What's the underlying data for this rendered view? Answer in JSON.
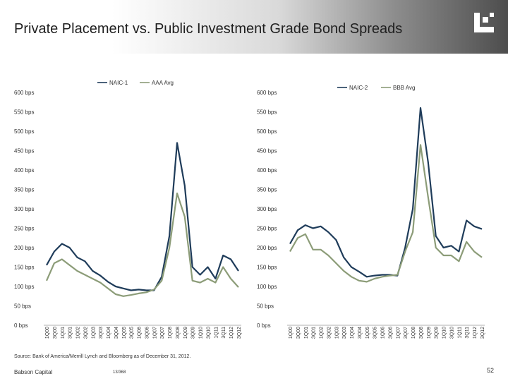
{
  "header": {
    "title": "Private Placement vs. Public Investment Grade Bond Spreads",
    "logo_icon": "babson-logo-icon"
  },
  "chart_data": [
    {
      "type": "line",
      "title": "",
      "xlabel": "",
      "ylabel": "",
      "ylim": [
        0,
        600
      ],
      "y_ticks": [
        0,
        50,
        100,
        150,
        200,
        250,
        300,
        350,
        400,
        450,
        500,
        550,
        600
      ],
      "y_tick_labels": [
        "0 bps",
        "50 bps",
        "100 bps",
        "150 bps",
        "200 bps",
        "250 bps",
        "300 bps",
        "350 bps",
        "400 bps",
        "450 bps",
        "500 bps",
        "550 bps",
        "600 bps"
      ],
      "categories": [
        "1Q00",
        "3Q00",
        "1Q01",
        "3Q01",
        "1Q02",
        "3Q02",
        "1Q03",
        "3Q03",
        "1Q04",
        "3Q04",
        "1Q05",
        "3Q05",
        "1Q06",
        "3Q06",
        "1Q07",
        "3Q07",
        "1Q08",
        "3Q08",
        "1Q09",
        "3Q09",
        "1Q10",
        "3Q10",
        "1Q11",
        "3Q11",
        "1Q12",
        "3Q12"
      ],
      "legend_position": "top",
      "series": [
        {
          "name": "NAIC-1",
          "color": "#1f3c5a",
          "values": [
            155,
            190,
            210,
            200,
            175,
            165,
            140,
            128,
            112,
            100,
            95,
            90,
            92,
            90,
            90,
            125,
            230,
            470,
            360,
            150,
            130,
            150,
            120,
            180,
            170,
            140
          ]
        },
        {
          "name": "AAA Avg",
          "color": "#8c9c78",
          "values": [
            115,
            160,
            170,
            155,
            140,
            130,
            120,
            110,
            95,
            80,
            75,
            78,
            82,
            85,
            92,
            115,
            200,
            340,
            280,
            115,
            110,
            120,
            110,
            150,
            120,
            98
          ]
        }
      ]
    },
    {
      "type": "line",
      "title": "",
      "xlabel": "",
      "ylabel": "",
      "ylim": [
        0,
        600
      ],
      "y_ticks": [
        0,
        50,
        100,
        150,
        200,
        250,
        300,
        350,
        400,
        450,
        500,
        550,
        600
      ],
      "y_tick_labels": [
        "0 bps",
        "50 bps",
        "100 bps",
        "150 bps",
        "200 bps",
        "250 bps",
        "300 bps",
        "350 bps",
        "400 bps",
        "450 bps",
        "500 bps",
        "550 bps",
        "600 bps"
      ],
      "categories": [
        "1Q00",
        "3Q00",
        "1Q01",
        "3Q01",
        "1Q02",
        "3Q02",
        "1Q03",
        "3Q03",
        "1Q04",
        "3Q04",
        "1Q05",
        "3Q05",
        "1Q06",
        "3Q06",
        "1Q07",
        "3Q07",
        "1Q08",
        "3Q08",
        "1Q09",
        "3Q09",
        "1Q10",
        "3Q10",
        "1Q11",
        "3Q11",
        "1Q12",
        "3Q12"
      ],
      "legend_position": "top",
      "series": [
        {
          "name": "NAIC-2",
          "color": "#1f3c5a",
          "values": [
            210,
            245,
            258,
            250,
            255,
            240,
            220,
            175,
            150,
            138,
            125,
            128,
            130,
            130,
            128,
            200,
            300,
            560,
            420,
            230,
            200,
            205,
            190,
            270,
            255,
            248
          ]
        },
        {
          "name": "BBB Avg",
          "color": "#8c9c78",
          "values": [
            190,
            225,
            235,
            195,
            195,
            180,
            160,
            140,
            125,
            115,
            112,
            120,
            125,
            128,
            130,
            190,
            240,
            465,
            330,
            200,
            180,
            180,
            165,
            215,
            190,
            175
          ]
        }
      ]
    }
  ],
  "source": "Source: Bank of America/Merrill Lynch and Bloomberg as of December 31, 2012.",
  "footer": {
    "company": "Babson Capital",
    "code": "13/368",
    "page": "52"
  }
}
